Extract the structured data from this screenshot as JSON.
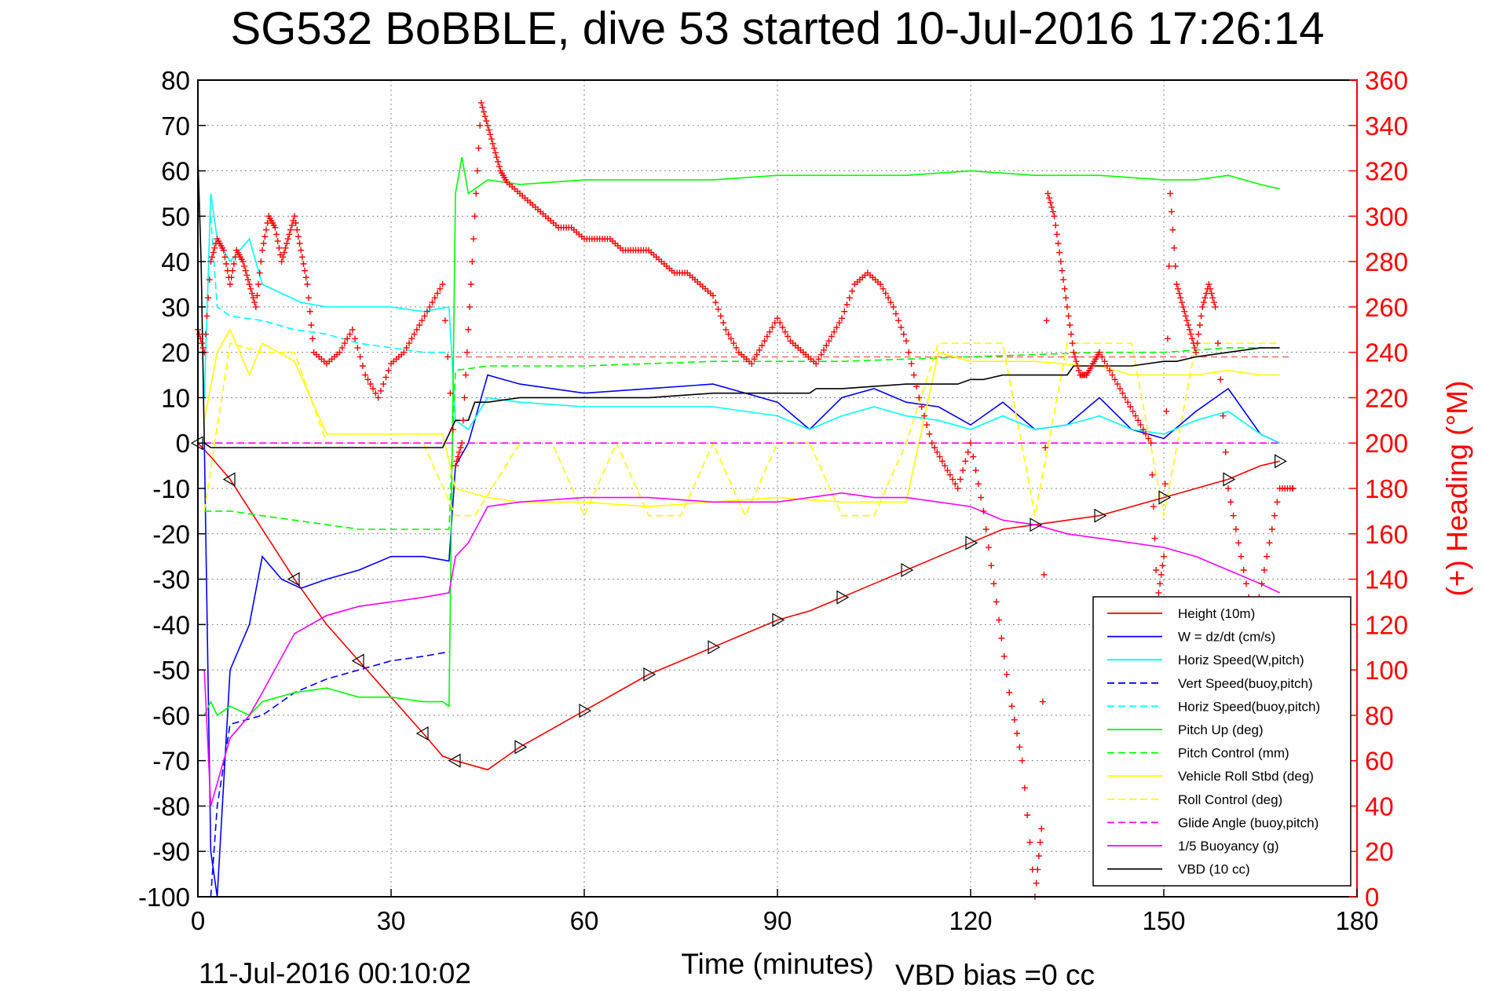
{
  "chart_data": {
    "type": "line",
    "title": "SG532 BoBBLE, dive 53 started 10-Jul-2016 17:26:14",
    "xlabel": "Time (minutes)",
    "ylabel": "",
    "ylabel_right": "(+) Heading (°M)",
    "footer_date": "11-Jul-2016 00:10:02",
    "footer_bias": "VBD bias =0 cc",
    "xlim": [
      0,
      180
    ],
    "ylim": [
      -100,
      80
    ],
    "ylim_right": [
      0,
      360
    ],
    "x_ticks": [
      "0",
      "30",
      "60",
      "90",
      "120",
      "150",
      "180"
    ],
    "y_ticks": [
      "80",
      "70",
      "60",
      "50",
      "40",
      "30",
      "20",
      "10",
      "0",
      "-10",
      "-20",
      "-30",
      "-40",
      "-50",
      "-60",
      "-70",
      "-80",
      "-90",
      "-100"
    ],
    "y_ticks_right": [
      "360",
      "340",
      "320",
      "300",
      "280",
      "260",
      "240",
      "220",
      "200",
      "180",
      "160",
      "140",
      "120",
      "100",
      "80",
      "60",
      "40",
      "20",
      "0"
    ],
    "grid": true,
    "legend_position": "bottom-right",
    "series": [
      {
        "name": "Height (10m)",
        "color": "#ff0000",
        "dash": "solid",
        "axis": "left",
        "x": [
          0,
          2,
          5,
          10,
          15,
          20,
          25,
          30,
          35,
          38,
          40,
          45,
          50,
          55,
          60,
          65,
          70,
          75,
          80,
          85,
          90,
          95,
          100,
          105,
          110,
          115,
          120,
          125,
          130,
          135,
          140,
          145,
          150,
          155,
          160,
          165,
          168
        ],
        "y": [
          0,
          -3,
          -8,
          -19,
          -30,
          -40,
          -48,
          -56,
          -64,
          -69,
          -70,
          -72,
          -67,
          -63,
          -59,
          -55,
          -51,
          -48,
          -45,
          -42,
          -39,
          -37,
          -34,
          -31,
          -28,
          -25,
          -22,
          -19,
          -18,
          -17,
          -16,
          -14,
          -12,
          -10,
          -8,
          -5,
          -4
        ]
      },
      {
        "name": "W = dz/dt (cm/s)",
        "color": "#0000ff",
        "dash": "solid",
        "axis": "left",
        "x": [
          1,
          2,
          3,
          5,
          8,
          10,
          13,
          16,
          20,
          25,
          30,
          35,
          39,
          40,
          42,
          45,
          50,
          60,
          70,
          80,
          90,
          95,
          100,
          105,
          110,
          115,
          120,
          125,
          130,
          135,
          140,
          145,
          150,
          155,
          160,
          165,
          168
        ],
        "y": [
          0,
          -90,
          -100,
          -50,
          -40,
          -25,
          -30,
          -32,
          -30,
          -28,
          -25,
          -25,
          -26,
          -5,
          0,
          15,
          13,
          11,
          12,
          13,
          9,
          3,
          10,
          12,
          9,
          8,
          4,
          9,
          3,
          4,
          10,
          3,
          1,
          7,
          12,
          2,
          0
        ]
      },
      {
        "name": "Horiz Speed(W,pitch)",
        "color": "#00ffff",
        "dash": "solid",
        "axis": "left",
        "x": [
          1,
          2,
          3,
          5,
          8,
          10,
          13,
          16,
          20,
          25,
          30,
          35,
          39,
          40,
          42,
          45,
          50,
          60,
          70,
          80,
          90,
          95,
          100,
          105,
          110,
          115,
          120,
          125,
          130,
          135,
          140,
          145,
          150,
          155,
          160,
          165,
          168
        ],
        "y": [
          10,
          55,
          45,
          40,
          45,
          35,
          33,
          31,
          30,
          30,
          30,
          29,
          30,
          5,
          3,
          10,
          9,
          8,
          8,
          8,
          6,
          3,
          6,
          8,
          6,
          5,
          3,
          6,
          3,
          4,
          6,
          3,
          2,
          5,
          7,
          2,
          0
        ]
      },
      {
        "name": "Vert Speed(buoy,pitch)",
        "color": "#0000ff",
        "dash": "dashed",
        "axis": "left",
        "x": [
          2,
          3,
          5,
          10,
          15,
          20,
          25,
          30,
          35,
          39
        ],
        "y": [
          -100,
          -80,
          -62,
          -60,
          -55,
          -52,
          -50,
          -48,
          -47,
          -46
        ]
      },
      {
        "name": "Horiz Speed(buoy,pitch)",
        "color": "#00ffff",
        "dash": "dashed",
        "axis": "left",
        "x": [
          2,
          3,
          5,
          10,
          15,
          20,
          25,
          30,
          35,
          39
        ],
        "y": [
          50,
          30,
          28,
          27,
          25,
          24,
          22,
          21,
          20,
          20
        ]
      },
      {
        "name": "Pitch Up (deg)",
        "color": "#00ff00",
        "dash": "solid",
        "axis": "left",
        "x": [
          1,
          2,
          3,
          5,
          8,
          10,
          15,
          20,
          25,
          30,
          35,
          38,
          39,
          40,
          41,
          42,
          45,
          50,
          60,
          70,
          80,
          90,
          100,
          110,
          120,
          130,
          140,
          150,
          155,
          160,
          165,
          168
        ],
        "y": [
          -60,
          -57,
          -60,
          -58,
          -60,
          -57,
          -55,
          -54,
          -56,
          -56,
          -57,
          -57,
          -58,
          55,
          63,
          55,
          58,
          57,
          58,
          58,
          58,
          59,
          59,
          59,
          60,
          59,
          59,
          58,
          58,
          59,
          57,
          56
        ]
      },
      {
        "name": "Pitch Control (mm)",
        "color": "#00ff00",
        "dash": "dashed",
        "axis": "left",
        "x": [
          1,
          5,
          10,
          15,
          20,
          25,
          30,
          35,
          38,
          39,
          40,
          45,
          50,
          60,
          80,
          100,
          120,
          140,
          150,
          160,
          168
        ],
        "y": [
          -15,
          -15,
          -16,
          -17,
          -18,
          -19,
          -19,
          -19,
          -19,
          -19,
          16,
          17,
          17,
          17,
          18,
          18,
          19,
          20,
          20,
          21,
          21
        ]
      },
      {
        "name": "Vehicle Roll Stbd (deg)",
        "color": "#ffff00",
        "dash": "solid",
        "axis": "left",
        "x": [
          1,
          3,
          5,
          8,
          10,
          15,
          20,
          25,
          30,
          35,
          38,
          40,
          45,
          50,
          60,
          70,
          80,
          90,
          100,
          110,
          115,
          120,
          130,
          138,
          140,
          145,
          150,
          155,
          160,
          165,
          168
        ],
        "y": [
          5,
          20,
          25,
          15,
          22,
          18,
          2,
          2,
          2,
          2,
          2,
          -10,
          -12,
          -13,
          -13,
          -14,
          -13,
          -12,
          -13,
          -13,
          20,
          18,
          18,
          17,
          17,
          15,
          15,
          15,
          16,
          15,
          15
        ]
      },
      {
        "name": "Roll Control (deg)",
        "color": "#ffff00",
        "dash": "dashed",
        "axis": "left",
        "x": [
          1,
          5,
          10,
          15,
          20,
          25,
          30,
          35,
          40,
          43,
          50,
          55,
          60,
          65,
          70,
          75,
          80,
          85,
          90,
          95,
          100,
          105,
          110,
          115,
          120,
          125,
          130,
          135,
          140,
          145,
          150,
          155,
          160,
          165,
          168
        ],
        "y": [
          -15,
          22,
          20,
          20,
          0,
          0,
          0,
          0,
          -16,
          -16,
          0,
          0,
          -16,
          0,
          -16,
          -16,
          0,
          -16,
          0,
          0,
          -16,
          -16,
          0,
          22,
          22,
          22,
          -16,
          22,
          22,
          22,
          -16,
          22,
          22,
          22,
          22
        ]
      },
      {
        "name": "Glide Angle (buoy,pitch)",
        "color": "#ff00ff",
        "dash": "dashed",
        "axis": "left",
        "x": [
          1,
          40,
          45,
          60,
          80,
          100,
          120,
          140,
          150,
          160,
          168
        ],
        "y": [
          0,
          0,
          0,
          0,
          0,
          0,
          0,
          0,
          0,
          0,
          0
        ]
      },
      {
        "name": "1/5 Buoyancy (g)",
        "color": "#ff00ff",
        "dash": "solid",
        "axis": "left",
        "x": [
          1,
          2,
          3,
          5,
          8,
          10,
          15,
          20,
          25,
          30,
          35,
          39,
          40,
          42,
          45,
          50,
          60,
          70,
          80,
          90,
          95,
          100,
          105,
          110,
          115,
          120,
          125,
          130,
          135,
          140,
          145,
          150,
          155,
          160,
          165,
          168
        ],
        "y": [
          -50,
          -80,
          -75,
          -65,
          -60,
          -55,
          -42,
          -38,
          -36,
          -35,
          -34,
          -33,
          -25,
          -22,
          -14,
          -13,
          -12,
          -12,
          -13,
          -13,
          -12,
          -11,
          -12,
          -12,
          -13,
          -14,
          -17,
          -18,
          -20,
          -21,
          -22,
          -23,
          -25,
          -28,
          -31,
          -33
        ]
      },
      {
        "name": "VBD (10 cc)",
        "color": "#000000",
        "dash": "solid",
        "axis": "left",
        "x": [
          0,
          0.5,
          1,
          2,
          5,
          10,
          20,
          30,
          38,
          39,
          40,
          42,
          43,
          45,
          50,
          60,
          70,
          80,
          90,
          95,
          96,
          100,
          110,
          115,
          118,
          120,
          122,
          125,
          130,
          135,
          136,
          138,
          140,
          145,
          150,
          152,
          155,
          160,
          165,
          168
        ],
        "y": [
          63,
          40,
          0,
          -1,
          -1,
          -1,
          -1,
          -1,
          -1,
          2,
          5,
          5,
          9,
          9,
          10,
          10,
          10,
          11,
          11,
          11,
          12,
          12,
          13,
          13,
          13,
          14,
          14,
          15,
          15,
          15,
          17,
          17,
          17,
          17,
          18,
          18,
          19,
          20,
          21,
          21
        ]
      }
    ],
    "heading_series": {
      "name": "Heading",
      "color": "#ff0000",
      "marker": "+",
      "axis": "right",
      "x": [
        0,
        1,
        2,
        3,
        4,
        5,
        6,
        7,
        8,
        9,
        10,
        11,
        12,
        13,
        14,
        15,
        16,
        17,
        18,
        20,
        22,
        24,
        26,
        28,
        30,
        32,
        34,
        36,
        38,
        40,
        41,
        42,
        43,
        44,
        45,
        46,
        47,
        48,
        50,
        52,
        54,
        56,
        58,
        60,
        62,
        64,
        66,
        68,
        70,
        72,
        74,
        76,
        78,
        80,
        82,
        84,
        86,
        88,
        90,
        92,
        94,
        96,
        98,
        100,
        102,
        104,
        106,
        108,
        110,
        112,
        114,
        116,
        118,
        120,
        122,
        124,
        126,
        128,
        130,
        131,
        132,
        133,
        134,
        135,
        136,
        137,
        138,
        139,
        140,
        142,
        144,
        146,
        148,
        149,
        150,
        151,
        152,
        153,
        154,
        155,
        156,
        157,
        158,
        160,
        162,
        164,
        166,
        168,
        170
      ],
      "y": [
        250,
        240,
        280,
        290,
        285,
        270,
        285,
        280,
        270,
        260,
        285,
        300,
        295,
        280,
        290,
        300,
        285,
        270,
        240,
        235,
        240,
        250,
        230,
        220,
        235,
        240,
        250,
        260,
        270,
        190,
        200,
        250,
        300,
        350,
        340,
        330,
        320,
        315,
        310,
        305,
        300,
        295,
        295,
        290,
        290,
        290,
        285,
        285,
        285,
        280,
        275,
        275,
        270,
        265,
        250,
        240,
        235,
        245,
        255,
        245,
        240,
        235,
        245,
        255,
        270,
        275,
        270,
        260,
        245,
        220,
        200,
        190,
        180,
        200,
        170,
        130,
        90,
        60,
        0,
        30,
        310,
        300,
        280,
        260,
        240,
        230,
        230,
        235,
        240,
        230,
        220,
        210,
        200,
        130,
        150,
        310,
        270,
        260,
        250,
        240,
        260,
        270,
        260,
        180,
        150,
        120,
        150,
        180,
        180
      ]
    }
  },
  "legend": {
    "items": [
      {
        "label": "Height (10m)",
        "color": "#ff0000",
        "dash": "solid"
      },
      {
        "label": "W = dz/dt (cm/s)",
        "color": "#0000ff",
        "dash": "solid"
      },
      {
        "label": "Horiz Speed(W,pitch)",
        "color": "#00ffff",
        "dash": "solid"
      },
      {
        "label": "Vert Speed(buoy,pitch)",
        "color": "#0000ff",
        "dash": "dashed"
      },
      {
        "label": "Horiz Speed(buoy,pitch)",
        "color": "#00ffff",
        "dash": "dashed"
      },
      {
        "label": "Pitch Up (deg)",
        "color": "#00ff00",
        "dash": "solid"
      },
      {
        "label": "Pitch Control (mm)",
        "color": "#00ff00",
        "dash": "dashed"
      },
      {
        "label": "Vehicle Roll Stbd (deg)",
        "color": "#ffff00",
        "dash": "solid"
      },
      {
        "label": "Roll Control (deg)",
        "color": "#ffff00",
        "dash": "dashed"
      },
      {
        "label": "Glide Angle (buoy,pitch)",
        "color": "#ff00ff",
        "dash": "dashed"
      },
      {
        "label": "1/5 Buoyancy (g)",
        "color": "#ff00ff",
        "dash": "solid"
      },
      {
        "label": "VBD (10 cc)",
        "color": "#000000",
        "dash": "solid"
      }
    ]
  },
  "ref_line": {
    "y_right": 238,
    "color": "#ff6666"
  }
}
